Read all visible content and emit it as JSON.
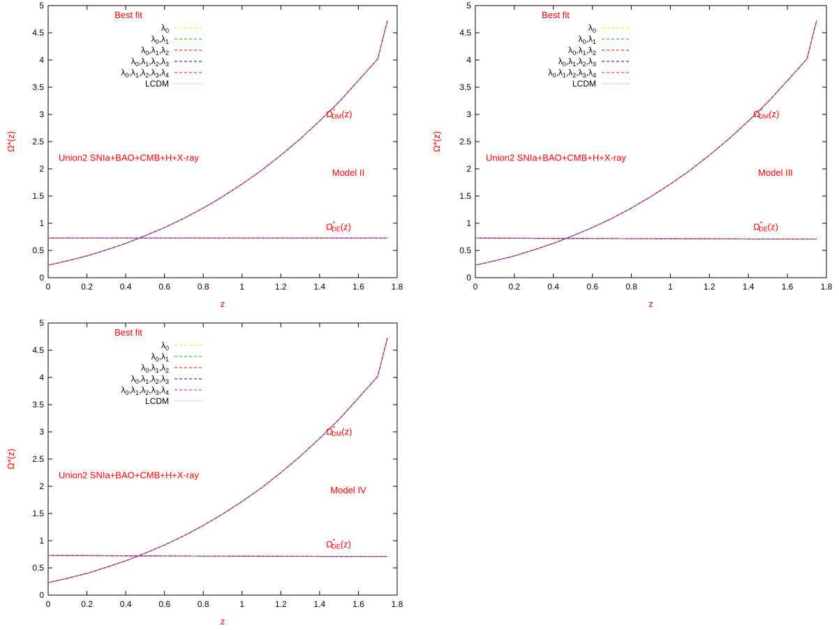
{
  "chart_data": [
    {
      "type": "line",
      "panel": "top-left",
      "xlabel": "z",
      "ylabel": "Ω*(z)",
      "xlim": [
        0,
        1.8
      ],
      "ylim": [
        0,
        5
      ],
      "xticks": [
        "0",
        "0.2",
        "0.4",
        "0.6",
        "0.8",
        "1",
        "1.2",
        "1.4",
        "1.6",
        "1.8"
      ],
      "yticks": [
        "0",
        "0.5",
        "1",
        "1.5",
        "2",
        "2.5",
        "3",
        "3.5",
        "4",
        "4.5",
        "5"
      ],
      "grid": false,
      "legend_title": "Best fit",
      "legend_position": "top-left",
      "legend": [
        {
          "base": "λ",
          "subs": [
            "0"
          ],
          "color": "#f0e000",
          "dash": "dashed"
        },
        {
          "base": "λ",
          "subs": [
            "0",
            "1"
          ],
          "color": "#00c000",
          "dash": "dashed"
        },
        {
          "base": "λ",
          "subs": [
            "0",
            "1",
            "2"
          ],
          "color": "#ff0000",
          "dash": "dashed"
        },
        {
          "base": "λ",
          "subs": [
            "0",
            "1",
            "2",
            "3"
          ],
          "color": "#0000c0",
          "dash": "dashed"
        },
        {
          "base": "λ",
          "subs": [
            "0",
            "1",
            "2",
            "3",
            "4"
          ],
          "color": "#e000e0",
          "dash": "dashed"
        },
        {
          "text": "LCDM",
          "color": "#888888",
          "dash": "dotted"
        }
      ],
      "annotations": {
        "dataset": "Union2 SNIa+BAO+CMB+H+X-ray",
        "model": "Model II",
        "dm_label": {
          "base": "Ω",
          "sup": "*",
          "sub": "DM",
          "tail": "(z)"
        },
        "de_label": {
          "base": "Ω",
          "sup": "*",
          "sub": "DE",
          "tail": "(z)"
        }
      },
      "series": [
        {
          "name": "Ω*_DM(z)",
          "x": [
            0,
            0.1,
            0.2,
            0.3,
            0.4,
            0.5,
            0.6,
            0.7,
            0.8,
            0.9,
            1.0,
            1.1,
            1.2,
            1.3,
            1.4,
            1.5,
            1.6,
            1.7,
            1.75
          ],
          "y": [
            0.23,
            0.31,
            0.4,
            0.51,
            0.63,
            0.77,
            0.92,
            1.09,
            1.28,
            1.49,
            1.72,
            1.97,
            2.25,
            2.55,
            2.88,
            3.23,
            3.62,
            4.02,
            4.73
          ]
        },
        {
          "name": "Ω*_DE(z)",
          "x": [
            0,
            1.75
          ],
          "y": [
            0.73,
            0.73
          ]
        }
      ]
    },
    {
      "type": "line",
      "panel": "top-right",
      "xlabel": "z",
      "ylabel": "Ω*(z)",
      "xlim": [
        0,
        1.8
      ],
      "ylim": [
        0,
        5
      ],
      "xticks": [
        "0",
        "0.2",
        "0.4",
        "0.6",
        "0.8",
        "1",
        "1.2",
        "1.4",
        "1.6",
        "1.8"
      ],
      "yticks": [
        "0",
        "0.5",
        "1",
        "1.5",
        "2",
        "2.5",
        "3",
        "3.5",
        "4",
        "4.5",
        "5"
      ],
      "grid": false,
      "legend_title": "Best fit",
      "legend_position": "top-left",
      "legend": [
        {
          "base": "λ",
          "subs": [
            "0"
          ],
          "color": "#f0e000",
          "dash": "dashed"
        },
        {
          "base": "λ",
          "subs": [
            "0",
            "1"
          ],
          "color": "#00c000",
          "dash": "dashed"
        },
        {
          "base": "λ",
          "subs": [
            "0",
            "1",
            "2"
          ],
          "color": "#ff0000",
          "dash": "dashed"
        },
        {
          "base": "λ",
          "subs": [
            "0",
            "1",
            "2",
            "3"
          ],
          "color": "#0000c0",
          "dash": "dashed"
        },
        {
          "base": "λ",
          "subs": [
            "0",
            "1",
            "2",
            "3",
            "4"
          ],
          "color": "#e000e0",
          "dash": "dashed"
        },
        {
          "text": "LCDM",
          "color": "#888888",
          "dash": "dotted"
        }
      ],
      "annotations": {
        "dataset": "Union2 SNIa+BAO+CMB+H+X-ray",
        "model": "Model III",
        "dm_label": {
          "base": "Ω",
          "sup": "*",
          "sub": "DM",
          "tail": "(z)"
        },
        "de_label": {
          "base": "Ω",
          "sup": "*",
          "sub": "DE",
          "tail": "(z)"
        }
      },
      "series": [
        {
          "name": "Ω*_DM(z)",
          "x": [
            0,
            0.1,
            0.2,
            0.3,
            0.4,
            0.5,
            0.6,
            0.7,
            0.8,
            0.9,
            1.0,
            1.1,
            1.2,
            1.3,
            1.4,
            1.5,
            1.6,
            1.7,
            1.75
          ],
          "y": [
            0.23,
            0.31,
            0.4,
            0.51,
            0.63,
            0.77,
            0.92,
            1.09,
            1.28,
            1.49,
            1.72,
            1.97,
            2.25,
            2.55,
            2.88,
            3.23,
            3.62,
            4.02,
            4.73
          ]
        },
        {
          "name": "Ω*_DE(z)",
          "x": [
            0,
            0.5,
            1.0,
            1.5,
            1.75
          ],
          "y": [
            0.73,
            0.72,
            0.715,
            0.71,
            0.71
          ]
        }
      ]
    },
    {
      "type": "line",
      "panel": "bottom-left",
      "xlabel": "z",
      "ylabel": "Ω*(z)",
      "xlim": [
        0,
        1.8
      ],
      "ylim": [
        0,
        5
      ],
      "xticks": [
        "0",
        "0.2",
        "0.4",
        "0.6",
        "0.8",
        "1",
        "1.2",
        "1.4",
        "1.6",
        "1.8"
      ],
      "yticks": [
        "0",
        "0.5",
        "1",
        "1.5",
        "2",
        "2.5",
        "3",
        "3.5",
        "4",
        "4.5",
        "5"
      ],
      "grid": false,
      "legend_title": "Best fit",
      "legend_position": "top-left",
      "legend": [
        {
          "base": "λ",
          "subs": [
            "0"
          ],
          "color": "#f0e000",
          "dash": "dashed"
        },
        {
          "base": "λ",
          "subs": [
            "0",
            "1"
          ],
          "color": "#00c000",
          "dash": "dashed"
        },
        {
          "base": "λ",
          "subs": [
            "0",
            "1",
            "2"
          ],
          "color": "#ff0000",
          "dash": "dashed"
        },
        {
          "base": "λ",
          "subs": [
            "0",
            "1",
            "2",
            "3"
          ],
          "color": "#0000c0",
          "dash": "dashed"
        },
        {
          "base": "λ",
          "subs": [
            "0",
            "1",
            "2",
            "3",
            "4"
          ],
          "color": "#e000e0",
          "dash": "dashed"
        },
        {
          "text": "LCDM",
          "color": "#888888",
          "dash": "dotted"
        }
      ],
      "annotations": {
        "dataset": "Union2 SNIa+BAO+CMB+H+X-ray",
        "model": "Model IV",
        "dm_label": {
          "base": "Ω",
          "sup": "*",
          "sub": "DM",
          "tail": "(z)"
        },
        "de_label": {
          "base": "Ω",
          "sup": "*",
          "sub": "DE",
          "tail": "(z)"
        }
      },
      "series": [
        {
          "name": "Ω*_DM(z)",
          "x": [
            0,
            0.1,
            0.2,
            0.3,
            0.4,
            0.5,
            0.6,
            0.7,
            0.8,
            0.9,
            1.0,
            1.1,
            1.2,
            1.3,
            1.4,
            1.5,
            1.6,
            1.7,
            1.75
          ],
          "y": [
            0.23,
            0.31,
            0.4,
            0.51,
            0.63,
            0.77,
            0.92,
            1.09,
            1.28,
            1.49,
            1.72,
            1.97,
            2.25,
            2.55,
            2.88,
            3.23,
            3.62,
            4.02,
            4.73
          ]
        },
        {
          "name": "Ω*_DE(z)",
          "x": [
            0,
            0.5,
            1.0,
            1.5,
            1.75
          ],
          "y": [
            0.73,
            0.72,
            0.715,
            0.71,
            0.71
          ]
        }
      ]
    }
  ]
}
